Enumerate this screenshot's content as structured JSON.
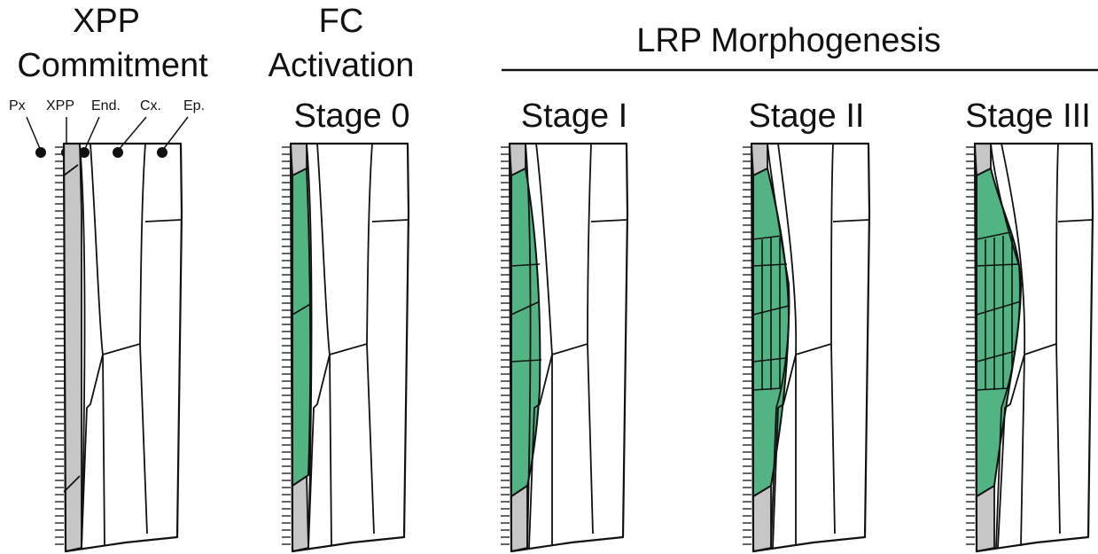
{
  "panels": [
    {
      "title_lines": [
        "XPP",
        "Commitment"
      ],
      "stage": ""
    },
    {
      "title_lines": [
        "FC",
        "Activation"
      ],
      "stage": "Stage 0"
    },
    {
      "title_lines": [],
      "stage": "Stage I"
    },
    {
      "title_lines": [],
      "stage": "Stage II"
    },
    {
      "title_lines": [],
      "stage": "Stage III"
    }
  ],
  "group_title": "LRP Morphogenesis",
  "tissue_labels": [
    "Px",
    "XPP",
    "End.",
    "Cx.",
    "Ep."
  ],
  "colors": {
    "lrp_fill": "#52b383",
    "pericycle_fill": "#c6c6c6",
    "outline": "#111111"
  },
  "icons": [
    "tissue-dot-icon"
  ]
}
